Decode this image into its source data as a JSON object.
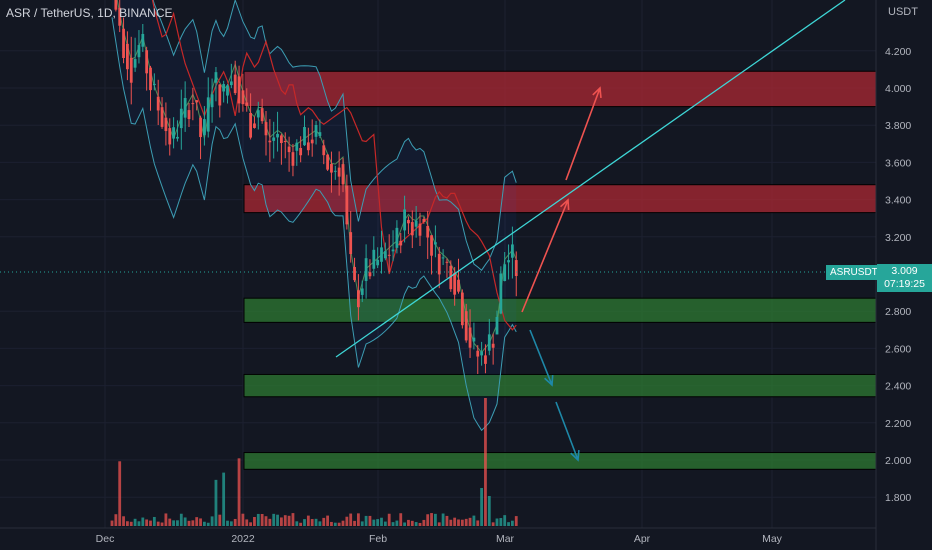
{
  "header": {
    "title": "ASR / TetherUS, 1D, BINANCE",
    "unit": "USDT"
  },
  "price_tag": {
    "symbol": "ASRUSDT",
    "price": "3.009",
    "countdown": "07:19:25"
  },
  "colors": {
    "background": "#131722",
    "up": "#26a69a",
    "down": "#ef5350",
    "resistance_zone": "#b22833",
    "support_zone": "#2e7d32",
    "trendline": "#3ed6d6",
    "arrow_up": "#ef5350",
    "arrow_down": "#1e88a8",
    "bollinger": "#3c9db3",
    "ma_red": "#c62828",
    "ma_green": "#66bb6a"
  },
  "chart_data": {
    "type": "candlestick",
    "title": "ASR / TetherUS, 1D, BINANCE",
    "y_unit": "USDT",
    "ylim": [
      1.55,
      4.05
    ],
    "y_ticks": [
      "4.200",
      "4.000",
      "3.800",
      "3.600",
      "3.400",
      "3.200",
      "2.800",
      "2.600",
      "2.400",
      "2.200",
      "2.000",
      "1.800"
    ],
    "x_ticks": [
      "Dec",
      "2022",
      "Feb",
      "Mar",
      "Apr",
      "May"
    ],
    "last_price": 3.009,
    "resistance_zones": [
      [
        3.9,
        4.09
      ],
      [
        3.33,
        3.48
      ]
    ],
    "support_zones": [
      [
        2.74,
        2.87
      ],
      [
        2.34,
        2.46
      ],
      [
        1.95,
        2.04
      ]
    ],
    "trendline": {
      "from": [
        "Jan 25",
        2.56
      ],
      "to": [
        "May 20",
        4.45
      ]
    },
    "arrows": [
      {
        "direction": "up",
        "from": 2.8,
        "to": 3.4
      },
      {
        "direction": "up",
        "from": 3.47,
        "to": 4.0
      },
      {
        "direction": "down",
        "from": 2.85,
        "to": 2.41
      },
      {
        "direction": "down",
        "from": 2.35,
        "to": 2.0
      }
    ]
  }
}
